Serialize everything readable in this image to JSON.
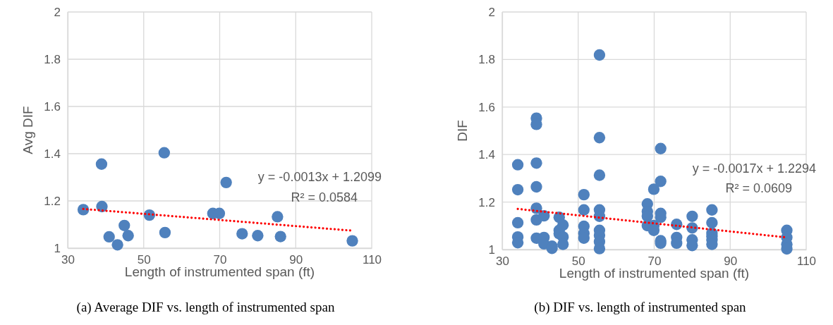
{
  "chart_data": [
    {
      "type": "scatter",
      "xlabel": "Length of instrumented span (ft)",
      "ylabel": "Avg DIF",
      "xlim": [
        30,
        110
      ],
      "xticks": [
        30,
        50,
        70,
        90,
        110
      ],
      "ylim": [
        1,
        2
      ],
      "yticks": [
        1,
        1.2,
        1.4,
        1.6,
        1.8,
        2
      ],
      "grid": true,
      "annotations": [
        "y = -0.0013x + 1.2099",
        "R² = 0.0584",
        "(a) Average DIF vs. length of instrumented span"
      ],
      "series": [
        {
          "type": "scatter",
          "color": "#4f81bd",
          "marker": "circle",
          "x": [
            34.1,
            38.9,
            39.0,
            44.9,
            40.9,
            45.9,
            43.1,
            51.5,
            55.4,
            55.6,
            71.7,
            68.2,
            69.9,
            75.9,
            80.0,
            85.2,
            86.0,
            104.9
          ],
          "values": [
            1.163,
            1.356,
            1.176,
            1.096,
            1.048,
            1.053,
            1.014,
            1.14,
            1.404,
            1.066,
            1.278,
            1.147,
            1.147,
            1.061,
            1.053,
            1.133,
            1.049,
            1.031
          ]
        },
        {
          "type": "line",
          "color": "#ff0000",
          "line_style": "dotted",
          "x": [
            34.1,
            104.9
          ],
          "values": [
            1.166,
            1.074
          ]
        }
      ]
    },
    {
      "type": "scatter",
      "xlabel": "Length of instrumented span (ft)",
      "ylabel": "DIF",
      "xlim": [
        30,
        110
      ],
      "xticks": [
        30,
        50,
        70,
        90,
        110
      ],
      "ylim": [
        1,
        2
      ],
      "yticks": [
        1,
        1.2,
        1.4,
        1.6,
        1.8,
        2
      ],
      "grid": true,
      "annotations": [
        "y = -0.0017x + 1.2294",
        "R² = 0.0609",
        "(b) DIF vs. length of instrumented span"
      ],
      "series": [
        {
          "type": "scatter",
          "color": "#4f81bd",
          "marker": "circle",
          "x": [
            34.1,
            34.1,
            34.1,
            34.1,
            34.1,
            39.0,
            39.0,
            39.0,
            39.0,
            39.0,
            39.0,
            39.0,
            41.0,
            41.0,
            41.0,
            43.1,
            43.1,
            45.0,
            45.0,
            45.0,
            46.0,
            46.0,
            46.0,
            51.5,
            51.5,
            51.5,
            51.5,
            51.5,
            55.6,
            55.6,
            55.6,
            55.6,
            55.6,
            55.6,
            55.6,
            55.6,
            55.6,
            68.2,
            68.2,
            68.2,
            68.2,
            69.9,
            69.9,
            69.9,
            71.7,
            71.7,
            71.7,
            71.7,
            71.7,
            71.7,
            75.9,
            75.9,
            75.9,
            80.0,
            80.0,
            80.0,
            80.0,
            85.2,
            85.2,
            85.2,
            85.2,
            85.2,
            85.2,
            104.9,
            104.9,
            104.9,
            104.9
          ],
          "values": [
            1.357,
            1.252,
            1.113,
            1.053,
            1.029,
            1.553,
            1.527,
            1.364,
            1.264,
            1.174,
            1.125,
            1.048,
            1.142,
            1.051,
            1.024,
            1.014,
            1.005,
            1.136,
            1.081,
            1.067,
            1.103,
            1.053,
            1.022,
            1.231,
            1.167,
            1.098,
            1.068,
            1.048,
            1.819,
            1.471,
            1.313,
            1.167,
            1.14,
            1.081,
            1.059,
            1.033,
            1.004,
            1.192,
            1.16,
            1.14,
            1.101,
            1.254,
            1.101,
            1.081,
            1.425,
            1.287,
            1.152,
            1.136,
            1.037,
            1.027,
            1.106,
            1.051,
            1.027,
            1.14,
            1.091,
            1.041,
            1.017,
            1.167,
            1.113,
            1.069,
            1.056,
            1.041,
            1.022,
            1.081,
            1.051,
            1.022,
            1.003
          ]
        },
        {
          "type": "line",
          "color": "#ff0000",
          "line_style": "dotted",
          "x": [
            34.1,
            104.9
          ],
          "values": [
            1.171,
            1.051
          ]
        }
      ]
    }
  ]
}
